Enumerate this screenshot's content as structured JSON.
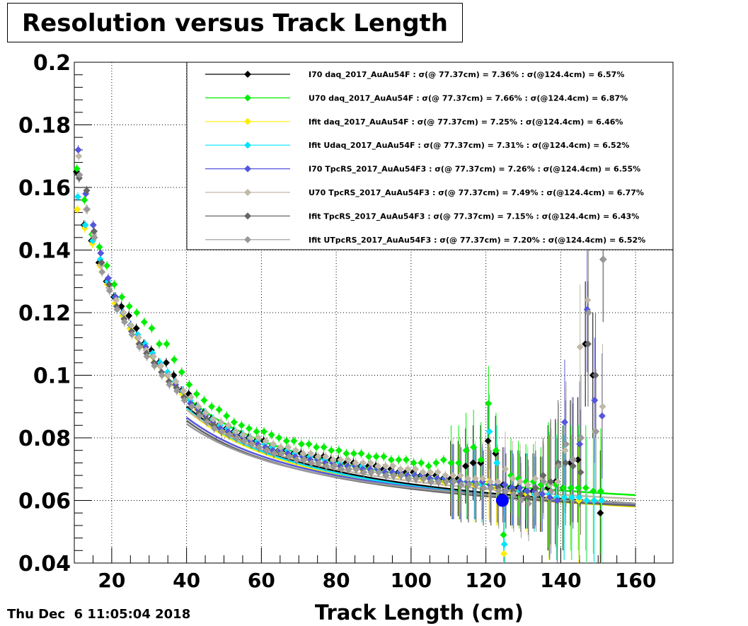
{
  "page": {
    "title": "Resolution versus Track Length",
    "timestamp": "Thu Dec  6 11:05:04 2018"
  },
  "chart_data": {
    "type": "scatter",
    "title": "Resolution versus Track Length",
    "xlabel": "Track Length (cm)",
    "ylabel": "",
    "xlim": [
      10,
      170
    ],
    "ylim": [
      0.04,
      0.2
    ],
    "xticks": [
      20,
      40,
      60,
      80,
      100,
      120,
      140,
      160
    ],
    "xtick_labels": [
      "20",
      "40",
      "60",
      "80",
      "100",
      "120",
      "140",
      "160"
    ],
    "yticks": [
      0.04,
      0.06,
      0.08,
      0.1,
      0.12,
      0.14,
      0.16,
      0.18,
      0.2
    ],
    "ytick_labels": [
      "0.04",
      "0.06",
      "0.08",
      "0.1",
      "0.12",
      "0.14",
      "0.16",
      "0.18",
      "0.2"
    ],
    "grid": true,
    "legend_position": "top-right",
    "x": [
      11,
      13,
      15,
      17,
      19,
      21,
      23,
      25,
      27,
      29,
      31,
      33,
      35,
      37,
      39,
      41,
      43,
      45,
      47,
      49,
      51,
      53,
      55,
      57,
      59,
      61,
      63,
      65,
      67,
      69,
      71,
      73,
      75,
      77,
      79,
      81,
      83,
      85,
      87,
      89,
      91,
      93,
      95,
      97,
      99,
      101,
      103,
      105,
      107,
      109,
      111,
      113,
      115,
      117,
      119,
      121,
      123,
      125,
      127,
      129,
      131,
      133,
      135,
      137,
      139,
      141,
      143,
      145,
      147,
      149,
      151
    ],
    "series": [
      {
        "name": "I70  daq_2017_AuAu54F : σ(@ 77.37cm) =  7.36% : σ(@124.4cm) =  6.57%",
        "color": "#000000",
        "values": [
          0.165,
          0.148,
          0.143,
          0.136,
          0.13,
          0.125,
          0.122,
          0.119,
          0.115,
          0.11,
          0.108,
          0.104,
          0.104,
          0.1,
          0.095,
          0.094,
          0.09,
          0.088,
          0.086,
          0.084,
          0.083,
          0.082,
          0.081,
          0.08,
          0.079,
          0.079,
          0.077,
          0.076,
          0.076,
          0.075,
          0.075,
          0.074,
          0.074,
          0.074,
          0.073,
          0.073,
          0.072,
          0.072,
          0.071,
          0.071,
          0.071,
          0.07,
          0.07,
          0.069,
          0.069,
          0.069,
          0.068,
          0.068,
          0.068,
          0.067,
          0.067,
          0.067,
          0.071,
          0.072,
          0.072,
          0.079,
          0.075,
          0.065,
          0.064,
          0.064,
          0.063,
          0.063,
          0.062,
          0.064,
          0.066,
          0.064,
          0.072,
          0.073,
          0.11,
          0.1,
          0.056
        ]
      },
      {
        "name": "U70  daq_2017_AuAu54F : σ(@ 77.37cm) =  7.66% : σ(@124.4cm) =  6.87%",
        "color": "#00ee00",
        "values": [
          0.166,
          0.156,
          0.145,
          0.141,
          0.135,
          0.129,
          0.125,
          0.122,
          0.12,
          0.117,
          0.115,
          0.11,
          0.11,
          0.105,
          0.101,
          0.097,
          0.094,
          0.092,
          0.09,
          0.089,
          0.087,
          0.085,
          0.084,
          0.083,
          0.082,
          0.082,
          0.081,
          0.08,
          0.079,
          0.079,
          0.078,
          0.078,
          0.077,
          0.077,
          0.076,
          0.076,
          0.075,
          0.075,
          0.075,
          0.074,
          0.074,
          0.074,
          0.073,
          0.073,
          0.073,
          0.072,
          0.072,
          0.071,
          0.072,
          0.073,
          0.072,
          0.072,
          0.076,
          0.077,
          0.073,
          0.091,
          0.076,
          0.049,
          0.068,
          0.067,
          0.066,
          0.066,
          0.065,
          0.065,
          0.065,
          0.064,
          0.064,
          0.064,
          0.064,
          0.063,
          0.063
        ]
      },
      {
        "name": "Ifit daq_2017_AuAu54F : σ(@ 77.37cm) =  7.25% : σ(@124.4cm) =  6.46%",
        "color": "#ffee00",
        "values": [
          0.153,
          0.147,
          0.142,
          0.135,
          0.129,
          0.123,
          0.119,
          0.115,
          0.112,
          0.109,
          0.106,
          0.103,
          0.1,
          0.097,
          0.094,
          0.092,
          0.089,
          0.087,
          0.085,
          0.084,
          0.082,
          0.081,
          0.08,
          0.079,
          0.078,
          0.078,
          0.077,
          0.076,
          0.075,
          0.074,
          0.074,
          0.073,
          0.073,
          0.072,
          0.072,
          0.071,
          0.071,
          0.071,
          0.07,
          0.07,
          0.07,
          0.069,
          0.069,
          0.068,
          0.068,
          0.068,
          0.067,
          0.067,
          0.067,
          0.066,
          0.066,
          0.066,
          0.066,
          0.065,
          0.065,
          0.066,
          0.064,
          0.043,
          0.063,
          0.063,
          0.062,
          0.062,
          0.062,
          0.061,
          0.061,
          0.061,
          0.061,
          0.06,
          0.06,
          0.06,
          0.06
        ]
      },
      {
        "name": "Ifit Udaq_2017_AuAu54F : σ(@ 77.37cm) =  7.31% : σ(@124.4cm) =  6.52%",
        "color": "#00e5ff",
        "values": [
          0.157,
          0.148,
          0.143,
          0.137,
          0.13,
          0.125,
          0.12,
          0.116,
          0.113,
          0.11,
          0.107,
          0.104,
          0.101,
          0.098,
          0.095,
          0.092,
          0.09,
          0.088,
          0.086,
          0.084,
          0.083,
          0.082,
          0.081,
          0.08,
          0.079,
          0.078,
          0.077,
          0.076,
          0.076,
          0.075,
          0.074,
          0.074,
          0.073,
          0.073,
          0.072,
          0.072,
          0.071,
          0.071,
          0.071,
          0.07,
          0.07,
          0.069,
          0.069,
          0.069,
          0.068,
          0.068,
          0.068,
          0.067,
          0.067,
          0.067,
          0.066,
          0.066,
          0.066,
          0.066,
          0.065,
          0.082,
          0.072,
          0.046,
          0.064,
          0.063,
          0.063,
          0.062,
          0.062,
          0.062,
          0.061,
          0.061,
          0.061,
          0.061,
          0.06,
          0.06,
          0.06
        ]
      },
      {
        "name": "I70  TpcRS_2017_AuAu54F3 : σ(@ 77.37cm) =  7.26% : σ(@124.4cm) =  6.55%",
        "color": "#5555dd",
        "values": [
          0.172,
          0.158,
          0.148,
          0.139,
          0.131,
          0.125,
          0.12,
          0.116,
          0.112,
          0.109,
          0.106,
          0.103,
          0.1,
          0.097,
          0.095,
          0.091,
          0.089,
          0.087,
          0.085,
          0.083,
          0.082,
          0.081,
          0.08,
          0.079,
          0.078,
          0.077,
          0.076,
          0.076,
          0.075,
          0.074,
          0.074,
          0.073,
          0.073,
          0.072,
          0.072,
          0.071,
          0.071,
          0.071,
          0.07,
          0.07,
          0.07,
          0.069,
          0.069,
          0.069,
          0.068,
          0.068,
          0.068,
          0.067,
          0.067,
          0.067,
          0.066,
          0.066,
          0.066,
          0.066,
          0.066,
          0.065,
          0.065,
          0.065,
          0.064,
          0.064,
          0.063,
          0.063,
          0.062,
          0.061,
          0.06,
          0.085,
          0.073,
          0.078,
          0.121,
          0.092,
          0.087
        ]
      },
      {
        "name": "U70  TpcRS_2017_AuAu54F3 : σ(@ 77.37cm) =  7.49% : σ(@124.4cm) =  6.77%",
        "color": "#c0b8a8",
        "values": [
          0.17,
          0.153,
          0.145,
          0.135,
          0.128,
          0.124,
          0.12,
          0.116,
          0.112,
          0.108,
          0.106,
          0.103,
          0.1,
          0.098,
          0.095,
          0.093,
          0.09,
          0.088,
          0.086,
          0.085,
          0.084,
          0.082,
          0.081,
          0.08,
          0.08,
          0.079,
          0.078,
          0.077,
          0.077,
          0.076,
          0.075,
          0.075,
          0.074,
          0.074,
          0.073,
          0.073,
          0.073,
          0.072,
          0.072,
          0.072,
          0.071,
          0.071,
          0.071,
          0.07,
          0.07,
          0.07,
          0.069,
          0.069,
          0.069,
          0.068,
          0.068,
          0.068,
          0.067,
          0.067,
          0.067,
          0.066,
          0.066,
          0.07,
          0.067,
          0.066,
          0.065,
          0.067,
          0.067,
          0.065,
          0.066,
          0.076,
          0.073,
          0.109,
          0.124,
          0.082,
          0.09
        ]
      },
      {
        "name": "Ifit TpcRS_2017_AuAu54F3 : σ(@ 77.37cm) =  7.15% : σ(@124.4cm) =  6.43%",
        "color": "#666666",
        "values": [
          0.163,
          0.159,
          0.146,
          0.136,
          0.129,
          0.122,
          0.118,
          0.114,
          0.11,
          0.107,
          0.104,
          0.101,
          0.098,
          0.096,
          0.093,
          0.09,
          0.088,
          0.086,
          0.084,
          0.082,
          0.081,
          0.08,
          0.079,
          0.078,
          0.077,
          0.076,
          0.075,
          0.075,
          0.074,
          0.073,
          0.073,
          0.072,
          0.072,
          0.071,
          0.071,
          0.07,
          0.07,
          0.07,
          0.069,
          0.069,
          0.069,
          0.068,
          0.068,
          0.068,
          0.067,
          0.067,
          0.067,
          0.066,
          0.066,
          0.066,
          0.066,
          0.065,
          0.065,
          0.065,
          0.064,
          0.064,
          0.064,
          0.063,
          0.063,
          0.062,
          0.061,
          0.064,
          0.068,
          0.066,
          0.072,
          0.072,
          0.071,
          0.069,
          0.11,
          0.1,
          0.137
        ]
      },
      {
        "name": "Ifit UTpcRS_2017_AuAu54F3 : σ(@ 77.37cm) =  7.20% : σ(@124.4cm) =  6.52%",
        "color": "#999999",
        "values": [
          0.164,
          0.153,
          0.144,
          0.133,
          0.127,
          0.121,
          0.117,
          0.113,
          0.109,
          0.106,
          0.103,
          0.1,
          0.097,
          0.095,
          0.092,
          0.09,
          0.087,
          0.085,
          0.083,
          0.082,
          0.081,
          0.08,
          0.079,
          0.078,
          0.077,
          0.076,
          0.075,
          0.075,
          0.074,
          0.073,
          0.073,
          0.072,
          0.072,
          0.071,
          0.071,
          0.07,
          0.07,
          0.07,
          0.069,
          0.069,
          0.069,
          0.068,
          0.068,
          0.068,
          0.067,
          0.067,
          0.067,
          0.066,
          0.066,
          0.066,
          0.066,
          0.065,
          0.065,
          0.065,
          0.064,
          0.064,
          0.063,
          0.063,
          0.062,
          0.06,
          0.059,
          0.062,
          0.066,
          0.063,
          0.071,
          0.078,
          0.073,
          0.08,
          0.12,
          0.082,
          0.137
        ]
      }
    ],
    "fit_lines": [
      {
        "color": "#000000",
        "y_at_40": 0.09,
        "y_at_160": 0.059
      },
      {
        "color": "#00ee00",
        "y_at_40": 0.093,
        "y_at_160": 0.0617
      },
      {
        "color": "#ffee00",
        "y_at_40": 0.089,
        "y_at_160": 0.058
      },
      {
        "color": "#00e5ff",
        "y_at_40": 0.0895,
        "y_at_160": 0.0585
      },
      {
        "color": "#5555dd",
        "y_at_40": 0.0865,
        "y_at_160": 0.0588
      },
      {
        "color": "#c0b8a8",
        "y_at_40": 0.089,
        "y_at_160": 0.0605
      },
      {
        "color": "#666666",
        "y_at_40": 0.0855,
        "y_at_160": 0.0583
      },
      {
        "color": "#999999",
        "y_at_40": 0.0845,
        "y_at_160": 0.059
      }
    ],
    "marker_point": {
      "x": 124.4,
      "y": 0.06,
      "color": "#0000ff"
    }
  }
}
